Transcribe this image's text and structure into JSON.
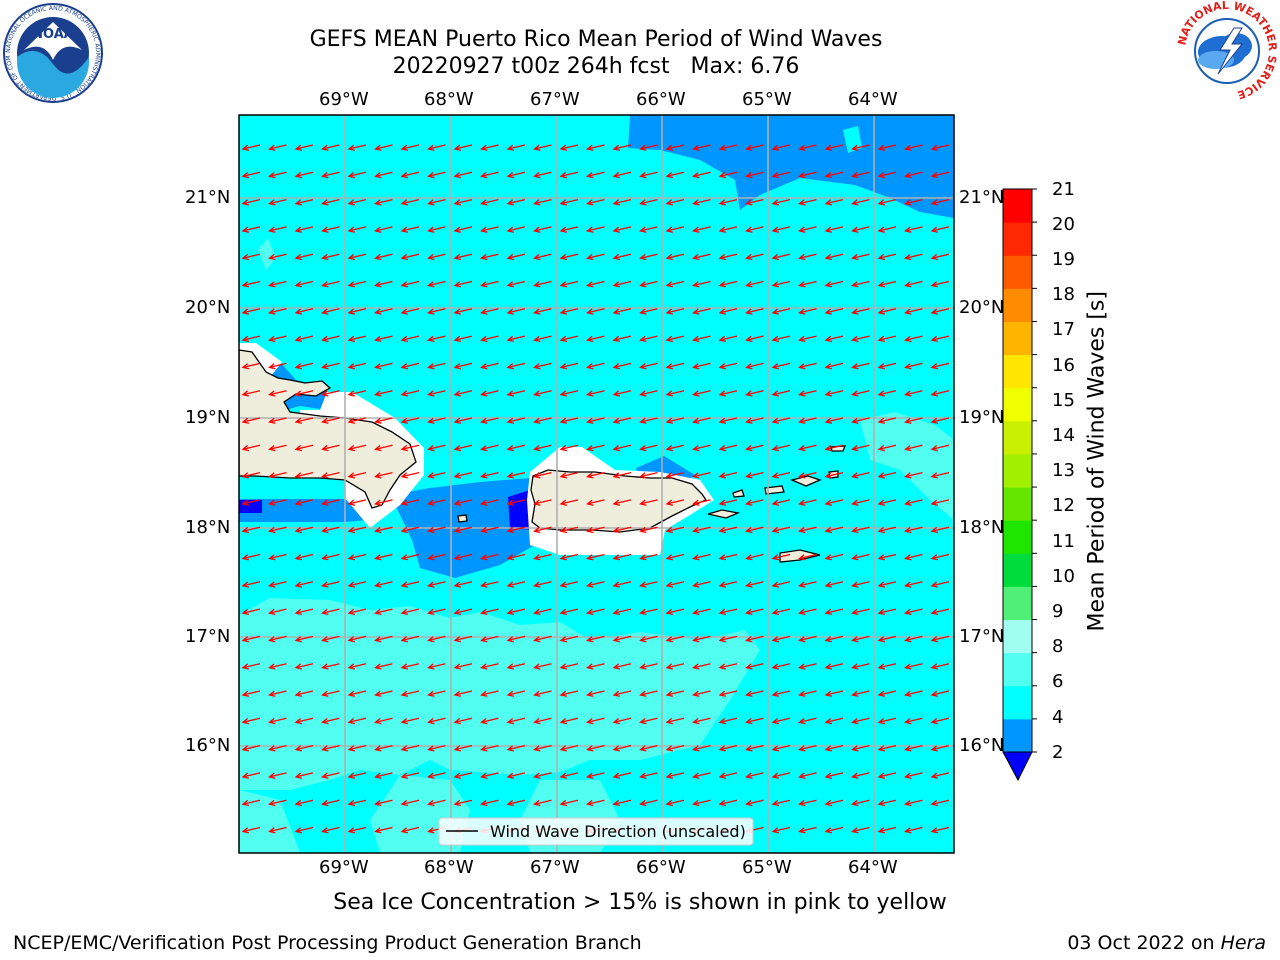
{
  "title": {
    "line1": "GEFS MEAN Puerto Rico Mean Period of Wind Waves",
    "line2": "20220927 t00z 264h fcst   Max: 6.76"
  },
  "map": {
    "lon_labels": [
      "69°W",
      "68°W",
      "67°W",
      "66°W",
      "65°W",
      "64°W"
    ],
    "lat_labels": [
      "21°N",
      "20°N",
      "19°N",
      "18°N",
      "17°N",
      "16°N"
    ],
    "legend_label": "Wind Wave Direction (unscaled)",
    "vector_color": "#ff0000",
    "ocean_color": "#00ffff",
    "land_color": "#efeddc"
  },
  "colorbar": {
    "label": "Mean Period of Wind Waves [s]",
    "ticks": [
      "21",
      "20",
      "19",
      "18",
      "17",
      "16",
      "15",
      "14",
      "13",
      "12",
      "11",
      "10",
      "9",
      "8",
      "6",
      "4",
      "2"
    ],
    "colors": [
      "#ff0000",
      "#ff2800",
      "#ff5a00",
      "#ff8c00",
      "#ffb400",
      "#ffe600",
      "#f0ff00",
      "#c8f000",
      "#a0f000",
      "#64e600",
      "#1ee600",
      "#00dc3c",
      "#50f078",
      "#a0fff0",
      "#50fff0",
      "#00ffff",
      "#0096ff"
    ],
    "under_color": "#0000ff"
  },
  "note": "Sea Ice Concentration > 15% is shown in pink to yellow",
  "footer": {
    "left": "NCEP/EMC/Verification Post Processing Product Generation Branch",
    "date": "03 Oct 2022 on ",
    "machine": "Hera"
  },
  "logos": {
    "noaa_text": "NOAA",
    "noaa_ring": "NATIONAL OCEANIC AND ATMOSPHERIC ADMINISTRATION · U.S. DEPARTMENT OF COMMERCE",
    "nws_ring": "NATIONAL WEATHER SERVICE"
  }
}
